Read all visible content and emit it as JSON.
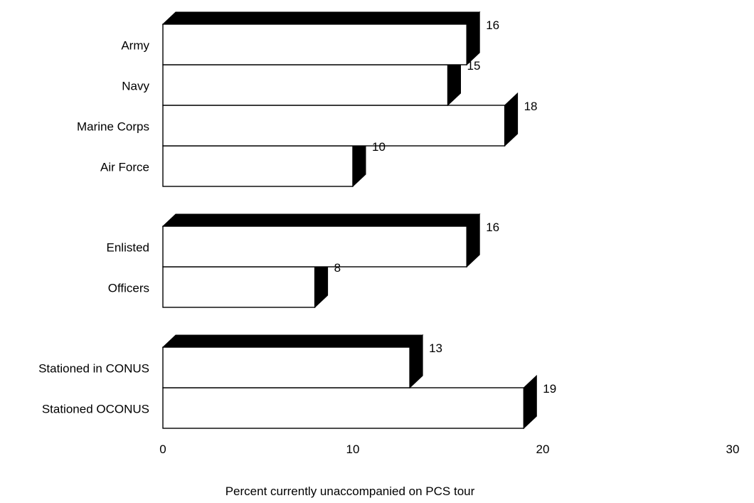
{
  "chart_data": {
    "type": "bar",
    "orientation": "horizontal",
    "style": "3d",
    "xlabel": "Percent currently unaccompanied on PCS tour",
    "xlim": [
      0,
      30
    ],
    "xticks": [
      "0",
      "10",
      "20",
      "30"
    ],
    "grid": false,
    "legend": "none",
    "groups": [
      {
        "categories": [
          "Army",
          "Navy",
          "Marine Corps",
          "Air Force"
        ],
        "values": [
          16,
          15,
          18,
          10
        ],
        "value_labels": [
          "16",
          "15",
          "18",
          "10"
        ]
      },
      {
        "categories": [
          "Enlisted",
          "Officers"
        ],
        "values": [
          16,
          8
        ],
        "value_labels": [
          "16",
          "8"
        ]
      },
      {
        "categories": [
          "Stationed in CONUS",
          "Stationed OCONUS"
        ],
        "values": [
          13,
          19
        ],
        "value_labels": [
          "13",
          "19"
        ]
      }
    ],
    "colors": {
      "bar_face": "#ffffff",
      "bar_depth": "#000000",
      "outline": "#000000"
    }
  }
}
